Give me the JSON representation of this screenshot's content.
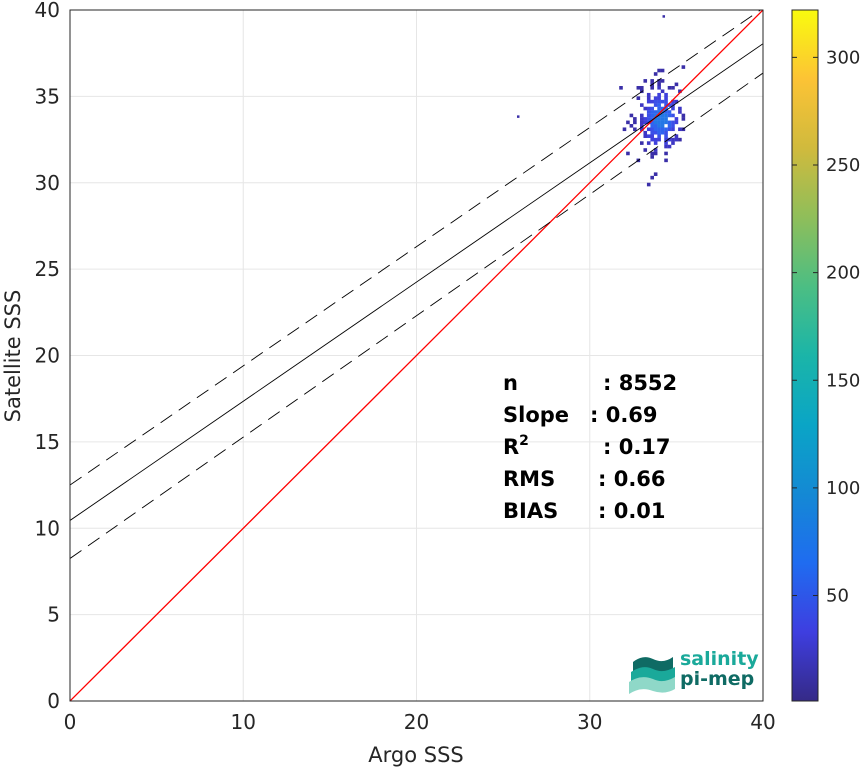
{
  "chart_data": {
    "type": "heatmap",
    "xlabel": "Argo SSS",
    "ylabel": "Satellite SSS",
    "xlim": [
      0,
      40
    ],
    "ylim": [
      0,
      40
    ],
    "x_ticks": [
      "0",
      "10",
      "20",
      "30",
      "40"
    ],
    "y_ticks": [
      "0",
      "5",
      "10",
      "15",
      "20",
      "25",
      "30",
      "35",
      "40"
    ],
    "grid": true,
    "colorbar": {
      "range": [
        1,
        322
      ],
      "ticks": [
        "50",
        "100",
        "150",
        "200",
        "250",
        "300"
      ],
      "tick_values": [
        50,
        100,
        150,
        200,
        250,
        300
      ],
      "colormap": "parula"
    },
    "density_cluster": {
      "x_center": 34.0,
      "y_center": 33.6,
      "x_range": [
        31.5,
        35.5
      ],
      "y_range": [
        29.8,
        36.8
      ],
      "count": 8552
    },
    "outliers": [
      {
        "x": 34.2,
        "y": 39.7
      },
      {
        "x": 25.8,
        "y": 33.9
      }
    ],
    "lines": [
      {
        "name": "1:1",
        "style": "solid",
        "color": "#ff0000",
        "x": [
          0,
          40
        ],
        "y": [
          0,
          40
        ]
      },
      {
        "name": "fit",
        "style": "solid",
        "color": "#000000",
        "x": [
          0,
          40
        ],
        "y": [
          10.45,
          38.05
        ]
      },
      {
        "name": "fit_upper",
        "style": "dashed",
        "color": "#000000",
        "x": [
          0,
          40
        ],
        "y": [
          12.5,
          40.1
        ]
      },
      {
        "name": "fit_lower",
        "style": "dashed",
        "color": "#000000",
        "x": [
          0,
          40
        ],
        "y": [
          8.25,
          36.35
        ]
      }
    ],
    "stats": [
      {
        "label": "n",
        "sep": ": ",
        "value": "8552"
      },
      {
        "label": "Slope",
        "sep": ": ",
        "value": "0.69"
      },
      {
        "label": "R",
        "sup": "2",
        "sep": ": ",
        "value": "0.17"
      },
      {
        "label": "RMS",
        "sep": ": ",
        "value": "0.66"
      },
      {
        "label": "BIAS",
        "sep": ": ",
        "value": "0.01"
      }
    ]
  },
  "logo": {
    "line1": "salinity",
    "line2": "pi-mep",
    "colors": {
      "teal": "#1aa99a",
      "dark": "#0f6b64",
      "light": "#8fd8c8"
    }
  }
}
